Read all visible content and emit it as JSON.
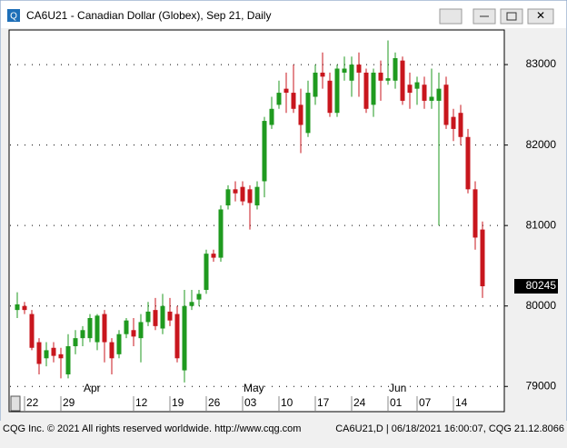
{
  "window_title": "CA6U21 - Canadian Dollar (Globex), Sep 21, Daily",
  "footer_left": "CQG Inc. © 2021 All rights reserved worldwide. http://www.cqg.com",
  "footer_right": "CA6U21,D | 06/18/2021 16:00:07, CQG 21.12.8066",
  "chart_data": {
    "type": "candlestick",
    "categories": [
      null,
      "22",
      null,
      null,
      null,
      null,
      "29",
      null,
      null,
      null,
      null,
      null,
      null,
      null,
      null,
      null,
      "12",
      null,
      null,
      null,
      null,
      "19",
      null,
      null,
      null,
      null,
      "26",
      null,
      null,
      null,
      null,
      "03",
      null,
      null,
      null,
      null,
      "10",
      null,
      null,
      null,
      null,
      "17",
      null,
      null,
      null,
      null,
      "24",
      null,
      null,
      null,
      null,
      "01",
      null,
      null,
      null,
      "07",
      null,
      null,
      null,
      null,
      "14",
      null,
      null,
      null,
      null
    ],
    "month_labels": [
      null,
      null,
      null,
      null,
      null,
      null,
      null,
      null,
      null,
      "Apr",
      null,
      null,
      null,
      null,
      null,
      null,
      null,
      null,
      null,
      null,
      null,
      null,
      null,
      null,
      null,
      null,
      null,
      null,
      null,
      null,
      null,
      "May",
      null,
      null,
      null,
      null,
      null,
      null,
      null,
      null,
      null,
      null,
      null,
      null,
      null,
      null,
      null,
      null,
      null,
      null,
      null,
      "Jun",
      null,
      null,
      null,
      null,
      null,
      null,
      null,
      null,
      null,
      null,
      null,
      null,
      null
    ],
    "open": [
      79950,
      80000,
      79900,
      79550,
      79350,
      79480,
      79400,
      79150,
      79500,
      79600,
      79600,
      79550,
      79900,
      79550,
      79400,
      79650,
      79700,
      79600,
      79800,
      79950,
      79720,
      79930,
      79900,
      79200,
      80000,
      80080,
      80200,
      80650,
      80600,
      81250,
      81450,
      81480,
      81450,
      81250,
      81550,
      82250,
      82500,
      82700,
      82650,
      82500,
      82150,
      82600,
      82900,
      82800,
      82400,
      82900,
      82800,
      83000,
      82900,
      82500,
      82900,
      82800,
      82800,
      83050,
      82750,
      82700,
      82750,
      82550,
      82550,
      82750,
      82350,
      82400,
      82100,
      81450,
      80950
    ],
    "high": [
      80170,
      80050,
      79950,
      79600,
      79550,
      79550,
      79480,
      79650,
      79700,
      79750,
      79900,
      79900,
      79950,
      79600,
      79700,
      79850,
      79850,
      79900,
      80050,
      80100,
      80150,
      80100,
      80000,
      80200,
      80200,
      80200,
      80700,
      80700,
      81250,
      81500,
      81550,
      81550,
      81500,
      81550,
      82350,
      82600,
      82800,
      82900,
      83000,
      82700,
      82800,
      83000,
      83150,
      82900,
      83000,
      83100,
      83100,
      83150,
      82950,
      82950,
      83050,
      83300,
      83150,
      83100,
      82900,
      82850,
      82850,
      82950,
      82900,
      82850,
      82450,
      82500,
      82200,
      81550,
      81050
    ],
    "low": [
      79850,
      79900,
      79450,
      79150,
      79250,
      79300,
      79100,
      79100,
      79400,
      79500,
      79550,
      79450,
      79300,
      79150,
      79350,
      79600,
      79500,
      79300,
      79750,
      79700,
      79650,
      79750,
      79300,
      79050,
      79950,
      80000,
      80150,
      80550,
      80550,
      81200,
      81300,
      81250,
      80950,
      81200,
      81350,
      82200,
      82450,
      82400,
      82400,
      81900,
      82100,
      82500,
      82700,
      82350,
      82350,
      82800,
      82600,
      82600,
      82400,
      82350,
      82550,
      82750,
      82700,
      82500,
      82450,
      82500,
      82450,
      82450,
      81000,
      82200,
      82050,
      82000,
      81400,
      80700,
      80100
    ],
    "close": [
      80020,
      79950,
      79480,
      79280,
      79450,
      79380,
      79350,
      79500,
      79600,
      79700,
      79850,
      79880,
      79550,
      79350,
      79650,
      79820,
      79620,
      79800,
      79930,
      79750,
      80000,
      79820,
      79350,
      80000,
      80050,
      80150,
      80650,
      80600,
      81200,
      81450,
      81400,
      81300,
      81280,
      81480,
      82300,
      82450,
      82650,
      82650,
      82450,
      82250,
      82650,
      82900,
      82850,
      82400,
      82950,
      82950,
      83000,
      82900,
      82450,
      82900,
      82800,
      82830,
      83080,
      82550,
      82650,
      82780,
      82550,
      82600,
      82700,
      82250,
      82200,
      82100,
      81450,
      80850,
      80245
    ],
    "up_color": "#1f9a1f",
    "down_color": "#c8161d",
    "ylim": [
      78890,
      83430
    ],
    "yticks": [
      79000,
      80000,
      81000,
      82000,
      83000
    ],
    "grid": true,
    "last_price": 80245
  }
}
